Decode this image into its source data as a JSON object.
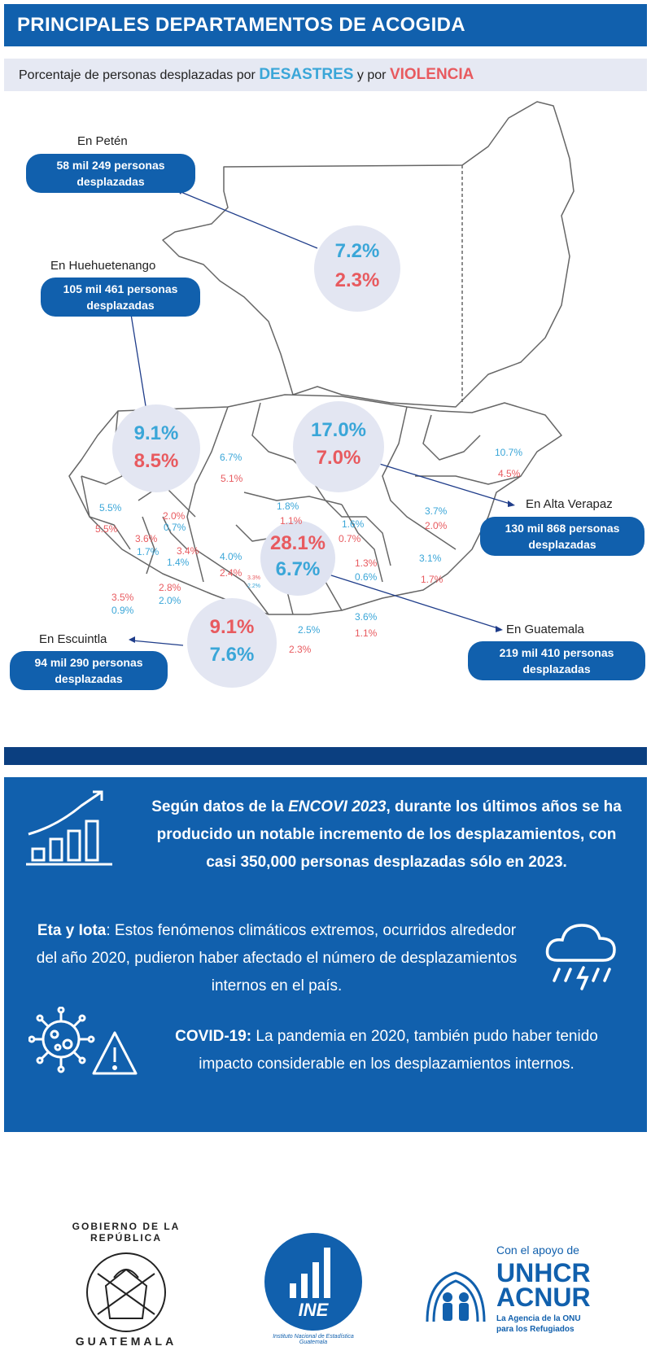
{
  "header": {
    "title": "PRINCIPALES DEPARTAMENTOS DE ACOGIDA"
  },
  "subheader": {
    "prefix": "Porcentaje de personas desplazadas por",
    "disasters": "DESASTRES",
    "middle": "y por",
    "violence": "VIOLENCIA"
  },
  "colors": {
    "brand_blue": "#1160ad",
    "disasters": "#3aa6d8",
    "violence": "#e85a5f",
    "circle_bg": "#e3e6f2"
  },
  "callouts": {
    "peten": {
      "title": "En Petén",
      "line1": "58 mil 249 personas",
      "line2": "desplazadas",
      "disasters": "7.2%",
      "violence": "2.3%"
    },
    "huehuetenango": {
      "title": "En Huehuetenango",
      "line1": "105 mil 461 personas",
      "line2": "desplazadas",
      "disasters": "9.1%",
      "violence": "8.5%"
    },
    "alta_verapaz": {
      "title": "En Alta Verapaz",
      "line1": "130 mil 868 personas",
      "line2": "desplazadas",
      "disasters": "17.0%",
      "violence": "7.0%"
    },
    "guatemala": {
      "title": "En Guatemala",
      "line1": "219 mil 410 personas",
      "line2": "desplazadas",
      "violence": "28.1%",
      "disasters": "6.7%"
    },
    "escuintla": {
      "title": "En Escuintla",
      "line1": "94 mil 290 personas",
      "line2": "desplazadas",
      "violence": "9.1%",
      "disasters": "7.6%"
    }
  },
  "departments": {
    "quiche": {
      "d": "6.7%",
      "v": "5.1%"
    },
    "izabal": {
      "d": "10.7%",
      "v": "4.5%"
    },
    "san_marcos": {
      "d": "5.5%",
      "v": "5.5%"
    },
    "totonicapan": {
      "v": "2.0%",
      "d": "0.7%"
    },
    "quetzaltenango": {
      "v": "3.6%",
      "d": "1.7%"
    },
    "solola": {
      "v": "3.4%",
      "d": "1.4%"
    },
    "baja_verapaz": {
      "d": "1.8%",
      "v": "1.1%"
    },
    "el_progreso": {
      "d": "1.6%",
      "v": "0.7%"
    },
    "zacapa": {
      "d": "3.7%",
      "v": "2.0%"
    },
    "chimaltenango": {
      "d": "4.0%",
      "v": "2.4%"
    },
    "sacatepequez": {
      "v": "3.3%",
      "d": "2.2%"
    },
    "jalapa": {
      "v": "1.3%",
      "d": "0.6%"
    },
    "chiquimula": {
      "d": "3.1%",
      "v": "1.7%"
    },
    "retalhuleu": {
      "v": "3.5%",
      "d": "0.9%"
    },
    "suchitepequez": {
      "v": "2.8%",
      "d": "2.0%"
    },
    "santa_rosa": {
      "d": "2.5%",
      "v": "2.3%"
    },
    "jutiapa": {
      "d": "3.6%",
      "v": "1.1%"
    }
  },
  "info": {
    "main_pre": "Según datos de la ",
    "main_em": "ENCOVI 2023",
    "main_post": ", durante los últimos años se ha producido un notable incremento de los desplazamientos, con casi 350,000 personas desplazadas sólo en 2023.",
    "eta_bold": "Eta y Iota",
    "eta_text": ": Estos fenómenos climáticos extremos, ocurridos alrededor del año 2020, pudieron haber afectado el número de desplazamientos internos en el país.",
    "covid_bold": "COVID-19:",
    "covid_text": " La pandemia en 2020, también pudo haber tenido impacto considerable en los desplazamientos internos."
  },
  "logos": {
    "gov_arc_top": "GOBIERNO DE LA REPÚBLICA",
    "gov_arc_bottom": "GUATEMALA",
    "ine_name": "INE",
    "ine_caption1": "Instituto Nacional de Estadística",
    "ine_caption2": "Guatemala",
    "support": "Con el apoyo de",
    "unhcr": "UNHCR",
    "acnur": "ACNUR",
    "acnur_line1": "La Agencia de la ONU",
    "acnur_line2": "para los Refugiados"
  }
}
